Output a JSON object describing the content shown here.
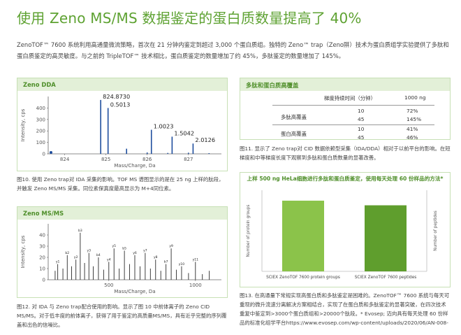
{
  "title": "使用 Zeno MS/MS 数据鉴定的蛋白质数量提高了 40%",
  "intro": "ZenoTOF™ 7600 系统利用高通量微流策略，首次在 21 分钟内鉴定到超过 3,000 个蛋白质组。独特的 Zeno™ trap（Zeno阱）技术为蛋白质组学实验提供了多肽和蛋白质鉴定的高灵敏度。与之前的 TripleTOF™ 技术相比，蛋白质鉴定的数量增加了约 45%，多肽鉴定的数量增加了 145%。",
  "panel1": {
    "header": "Zeno DDA",
    "caption": "图10. 使用 Zeno trap对 IDA 采集的影响。TOF MS 谱图显示的是在 25 ng 上样的肽段，并触发 Zeno MS/MS 采集。同位素保真度最高显示为 M+4同位素。",
    "chart_data": {
      "type": "bar",
      "xlabel": "Mass/Charge, Da",
      "ylabel": "Intensity, cps",
      "xlim": [
        823.6,
        827.8
      ],
      "ylim": [
        0,
        500
      ],
      "x_ticks": [
        "824",
        "825",
        "826",
        "827"
      ],
      "y_ticks": [
        "0",
        "100",
        "200",
        "300",
        "400"
      ],
      "peaks": [
        {
          "x": 824.873,
          "y": 470,
          "label": "824.8730"
        },
        {
          "x": 825.0513,
          "y": 400,
          "label": "0.5013"
        },
        {
          "x": 825.5,
          "y": 45,
          "label": ""
        },
        {
          "x": 826.0,
          "y": 12,
          "label": ""
        },
        {
          "x": 826.1023,
          "y": 210,
          "label": "1.0023"
        },
        {
          "x": 826.5,
          "y": 8,
          "label": ""
        },
        {
          "x": 826.6042,
          "y": 150,
          "label": "1.5042"
        },
        {
          "x": 827.0,
          "y": 10,
          "label": ""
        },
        {
          "x": 827.1126,
          "y": 90,
          "label": "2.0126"
        },
        {
          "x": 827.5,
          "y": 6,
          "label": ""
        }
      ],
      "line_color": "#1f4e9e"
    }
  },
  "panel2": {
    "header": "Zeno MS/MS",
    "caption": "图12. 对 IDA 与 Zeno trap配合使用的影响。显示了图 10 中前体离子的 Zeno CID MS/MS。对于低丰度的前体离子，获得了用于鉴定的高质量MS/MS，具有近乎完整的序列覆盖和出色的信噪比。",
    "chart_data": {
      "type": "bar",
      "xlabel": "Mass/Charge, Da",
      "ylabel": "Intensity, cps",
      "xlim": [
        150,
        1150
      ],
      "ylim": [
        0,
        50
      ],
      "x_ticks": [
        "500",
        "1000"
      ],
      "y_ticks": [
        "0",
        "10",
        "20",
        "30",
        "40"
      ],
      "peaks": [
        {
          "x": 190,
          "y": 8,
          "label": ""
        },
        {
          "x": 205,
          "y": 14,
          "label": "y1"
        },
        {
          "x": 235,
          "y": 10,
          "label": ""
        },
        {
          "x": 260,
          "y": 22,
          "label": "b2"
        },
        {
          "x": 285,
          "y": 12,
          "label": ""
        },
        {
          "x": 310,
          "y": 18,
          "label": "y2"
        },
        {
          "x": 335,
          "y": 42,
          "label": "b3"
        },
        {
          "x": 360,
          "y": 15,
          "label": ""
        },
        {
          "x": 385,
          "y": 24,
          "label": "y3"
        },
        {
          "x": 410,
          "y": 12,
          "label": ""
        },
        {
          "x": 440,
          "y": 20,
          "label": "b4"
        },
        {
          "x": 470,
          "y": 9,
          "label": ""
        },
        {
          "x": 500,
          "y": 16,
          "label": "y4"
        },
        {
          "x": 530,
          "y": 28,
          "label": "y5"
        },
        {
          "x": 560,
          "y": 10,
          "label": ""
        },
        {
          "x": 590,
          "y": 26,
          "label": "b5"
        },
        {
          "x": 620,
          "y": 14,
          "label": ""
        },
        {
          "x": 650,
          "y": 22,
          "label": "y6"
        },
        {
          "x": 680,
          "y": 12,
          "label": ""
        },
        {
          "x": 710,
          "y": 24,
          "label": "y7"
        },
        {
          "x": 740,
          "y": 10,
          "label": ""
        },
        {
          "x": 770,
          "y": 18,
          "label": "y8"
        },
        {
          "x": 800,
          "y": 8,
          "label": ""
        },
        {
          "x": 830,
          "y": 14,
          "label": "b7"
        },
        {
          "x": 860,
          "y": 28,
          "label": "y9"
        },
        {
          "x": 890,
          "y": 9,
          "label": ""
        },
        {
          "x": 920,
          "y": 12,
          "label": "y10"
        },
        {
          "x": 960,
          "y": 6,
          "label": ""
        },
        {
          "x": 1000,
          "y": 16,
          "label": "y11"
        },
        {
          "x": 1040,
          "y": 5,
          "label": ""
        },
        {
          "x": 1080,
          "y": 8,
          "label": ""
        }
      ],
      "line_color": "#2a2a2a"
    }
  },
  "panel3": {
    "header": "多肽和蛋白质高覆盖",
    "col_header_1": "梯度持续时间（分钟）",
    "col_header_2": "1000 ng",
    "groups": [
      {
        "name": "多肽高覆盖",
        "rows": [
          {
            "time": "10",
            "value": "72%"
          },
          {
            "time": "45",
            "value": "145%"
          }
        ]
      },
      {
        "name": "蛋白高覆盖",
        "rows": [
          {
            "time": "10",
            "value": "41%"
          },
          {
            "time": "45",
            "value": "46%"
          }
        ]
      }
    ],
    "caption": "图11. 显示了 Zeno trap对 CID 数据依赖型采集（IDA/DDA）相对于以前平台的影响。在短梯度和中等梯度长度下观察到多肽和蛋白质数量的显著改善。"
  },
  "panel4": {
    "header": "上样 500 ng HeLa细胞进行多肽和蛋白质鉴定，使用每天处理 60 份样品的方法*",
    "caption": "图13. 在高通量下常规实现高蛋白质和多肽鉴定是困难的。ZenoTOF™ 7600 系统与每天可重现的微升流速分离解决方案相结合，实现了在蛋白质和多肽鉴定的显著突破，在四次技术重复中鉴定到>3000个蛋白质组和>20000个肽段。* Evosep; 迈向具有每天处理 60 份样品的标准化组学平台https://www.evosep.com/wp-content/uploads/2020/06/AN-008-",
    "chart_data": {
      "type": "bar",
      "categories": [
        "SCIEX ZenoTOF 7600 protein groups",
        "SCIEX ZenoTOF 7600 peptides"
      ],
      "ylabel_left": "Number of protein groups",
      "ylabel_right": "Number of peptides",
      "series": [
        {
          "values": [
            3050,
            2850
          ]
        }
      ],
      "colors": [
        "#8bc34a",
        "#5f9e2d"
      ]
    }
  }
}
